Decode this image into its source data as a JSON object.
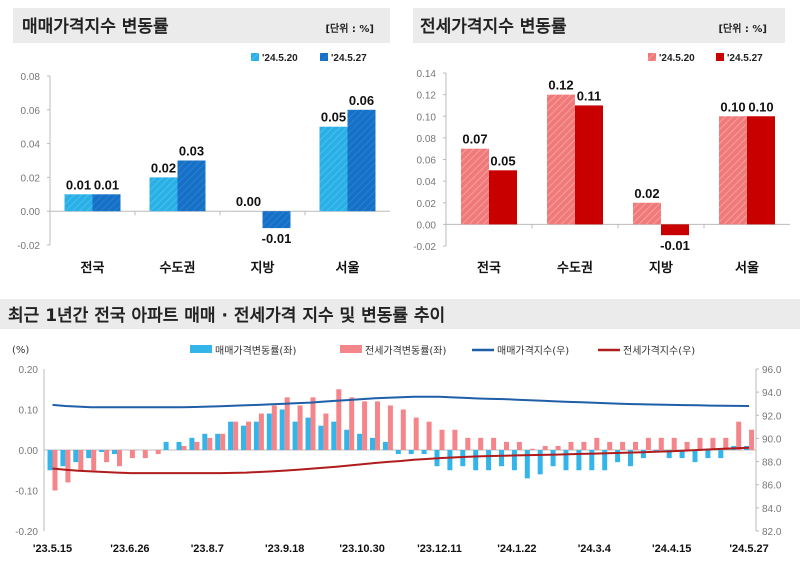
{
  "chart_data": [
    {
      "type": "bar",
      "title": "매매가격지수 변동률",
      "unit": "[단위 : %]",
      "categories": [
        "전국",
        "수도권",
        "지방",
        "서울"
      ],
      "series": [
        {
          "name": "'24.5.20",
          "values": [
            0.01,
            0.02,
            0.0,
            0.05
          ],
          "color": "#29b0e6"
        },
        {
          "name": "'24.5.27",
          "values": [
            0.01,
            0.03,
            -0.01,
            0.06
          ],
          "color": "#1670c6"
        }
      ],
      "data_labels": [
        [
          "0.01",
          "0.02",
          "0.00",
          "0.05"
        ],
        [
          "0.01",
          "0.03",
          "-0.01",
          "0.06"
        ]
      ],
      "ylim": [
        -0.02,
        0.08
      ],
      "yticks": [
        "0.08",
        "0.06",
        "0.04",
        "0.02",
        "0.00",
        "-0.02"
      ],
      "legend": "top-right",
      "grid": false
    },
    {
      "type": "bar",
      "title": "전세가격지수 변동률",
      "unit": "[단위 : %]",
      "categories": [
        "전국",
        "수도권",
        "지방",
        "서울"
      ],
      "series": [
        {
          "name": "'24.5.20",
          "values": [
            0.07,
            0.12,
            0.02,
            0.1
          ],
          "color": "#f07a7a"
        },
        {
          "name": "'24.5.27",
          "values": [
            0.05,
            0.11,
            -0.01,
            0.1
          ],
          "color": "#c80000"
        }
      ],
      "data_labels": [
        [
          "0.07",
          "0.12",
          "0.02",
          "0.10"
        ],
        [
          "0.05",
          "0.11",
          "-0.01",
          "0.10"
        ]
      ],
      "ylim": [
        -0.02,
        0.14
      ],
      "yticks": [
        "0.14",
        "0.12",
        "0.10",
        "0.08",
        "0.06",
        "0.04",
        "0.02",
        "0.00",
        "-0.02"
      ],
      "legend": "top-right",
      "grid": false
    },
    {
      "type": "bar+line",
      "title": "최근 1년간 전국 아파트 매매 · 전세가격 지수 및 변동률 추이",
      "left_unit": "(%)",
      "ylim_left": [
        -0.2,
        0.2
      ],
      "yticks_left": [
        "0.20",
        "0.10",
        "0.00",
        "-0.10",
        "-0.20"
      ],
      "ylim_right": [
        82.0,
        96.0
      ],
      "yticks_right": [
        "96.0",
        "94.0",
        "92.0",
        "90.0",
        "88.0",
        "86.0",
        "84.0",
        "82.0"
      ],
      "xtick_labels": [
        "'23.5.15",
        "'23.6.26",
        "'23.8.7",
        "'23.9.18",
        "'23.10.30",
        "'23.12.11",
        "'24.1.22",
        "'24.3.4",
        "'24.4.15",
        "'24.5.27"
      ],
      "legend": "top",
      "series": [
        {
          "name": "매매가격변동률(좌)",
          "type": "bar",
          "axis": "left",
          "color": "#33b5ea",
          "values": [
            -0.05,
            -0.04,
            -0.03,
            -0.02,
            -0.005,
            -0.01,
            0.0,
            0.0,
            0.0,
            0.02,
            0.02,
            0.03,
            0.04,
            0.04,
            0.07,
            0.06,
            0.07,
            0.09,
            0.1,
            0.07,
            0.08,
            0.06,
            0.07,
            0.05,
            0.04,
            0.03,
            0.02,
            -0.01,
            -0.01,
            -0.01,
            -0.04,
            -0.05,
            -0.04,
            -0.05,
            -0.05,
            -0.04,
            -0.05,
            -0.07,
            -0.06,
            -0.04,
            -0.05,
            -0.05,
            -0.05,
            -0.05,
            -0.03,
            -0.04,
            -0.02,
            -0.005,
            -0.02,
            -0.02,
            -0.03,
            -0.02,
            -0.02,
            0.01,
            0.01
          ]
        },
        {
          "name": "전세가격변동률(좌)",
          "type": "bar",
          "axis": "left",
          "color": "#f4858a",
          "values": [
            -0.1,
            -0.08,
            -0.05,
            -0.05,
            -0.03,
            -0.04,
            -0.02,
            -0.02,
            -0.01,
            0.0,
            0.01,
            0.02,
            0.03,
            0.04,
            0.07,
            0.07,
            0.09,
            0.11,
            0.13,
            0.11,
            0.13,
            0.09,
            0.15,
            0.13,
            0.12,
            0.12,
            0.11,
            0.1,
            0.08,
            0.07,
            0.05,
            0.05,
            0.03,
            0.03,
            0.03,
            0.02,
            0.02,
            0.003,
            0.01,
            0.01,
            0.02,
            0.02,
            0.03,
            0.02,
            0.02,
            0.02,
            0.03,
            0.03,
            0.03,
            0.02,
            0.03,
            0.03,
            0.03,
            0.07,
            0.05
          ]
        },
        {
          "name": "매매가격지수(우)",
          "type": "line",
          "axis": "right",
          "color": "#1f5fa8",
          "values": [
            92.9,
            92.8,
            92.75,
            92.7,
            92.7,
            92.7,
            92.7,
            92.7,
            92.7,
            92.7,
            92.7,
            92.72,
            92.75,
            92.78,
            92.82,
            92.86,
            92.9,
            92.95,
            93.0,
            93.05,
            93.1,
            93.18,
            93.25,
            93.32,
            93.4,
            93.47,
            93.52,
            93.56,
            93.6,
            93.6,
            93.6,
            93.55,
            93.5,
            93.45,
            93.42,
            93.4,
            93.35,
            93.3,
            93.25,
            93.2,
            93.16,
            93.12,
            93.08,
            93.04,
            93.0,
            92.97,
            92.94,
            92.92,
            92.9,
            92.88,
            92.86,
            92.84,
            92.82,
            92.81,
            92.8
          ]
        },
        {
          "name": "전세가격지수(우)",
          "type": "line",
          "axis": "right",
          "color": "#b01c1c",
          "values": [
            87.4,
            87.3,
            87.2,
            87.15,
            87.1,
            87.05,
            87.0,
            87.0,
            87.0,
            87.0,
            87.0,
            87.0,
            87.0,
            87.0,
            87.02,
            87.05,
            87.1,
            87.15,
            87.22,
            87.3,
            87.38,
            87.47,
            87.56,
            87.66,
            87.77,
            87.88,
            87.97,
            88.05,
            88.15,
            88.22,
            88.3,
            88.35,
            88.4,
            88.45,
            88.48,
            88.5,
            88.53,
            88.56,
            88.58,
            88.6,
            88.63,
            88.66,
            88.69,
            88.72,
            88.75,
            88.78,
            88.82,
            88.86,
            88.9,
            88.95,
            89.0,
            89.05,
            89.1,
            89.15,
            89.2
          ]
        }
      ]
    }
  ]
}
